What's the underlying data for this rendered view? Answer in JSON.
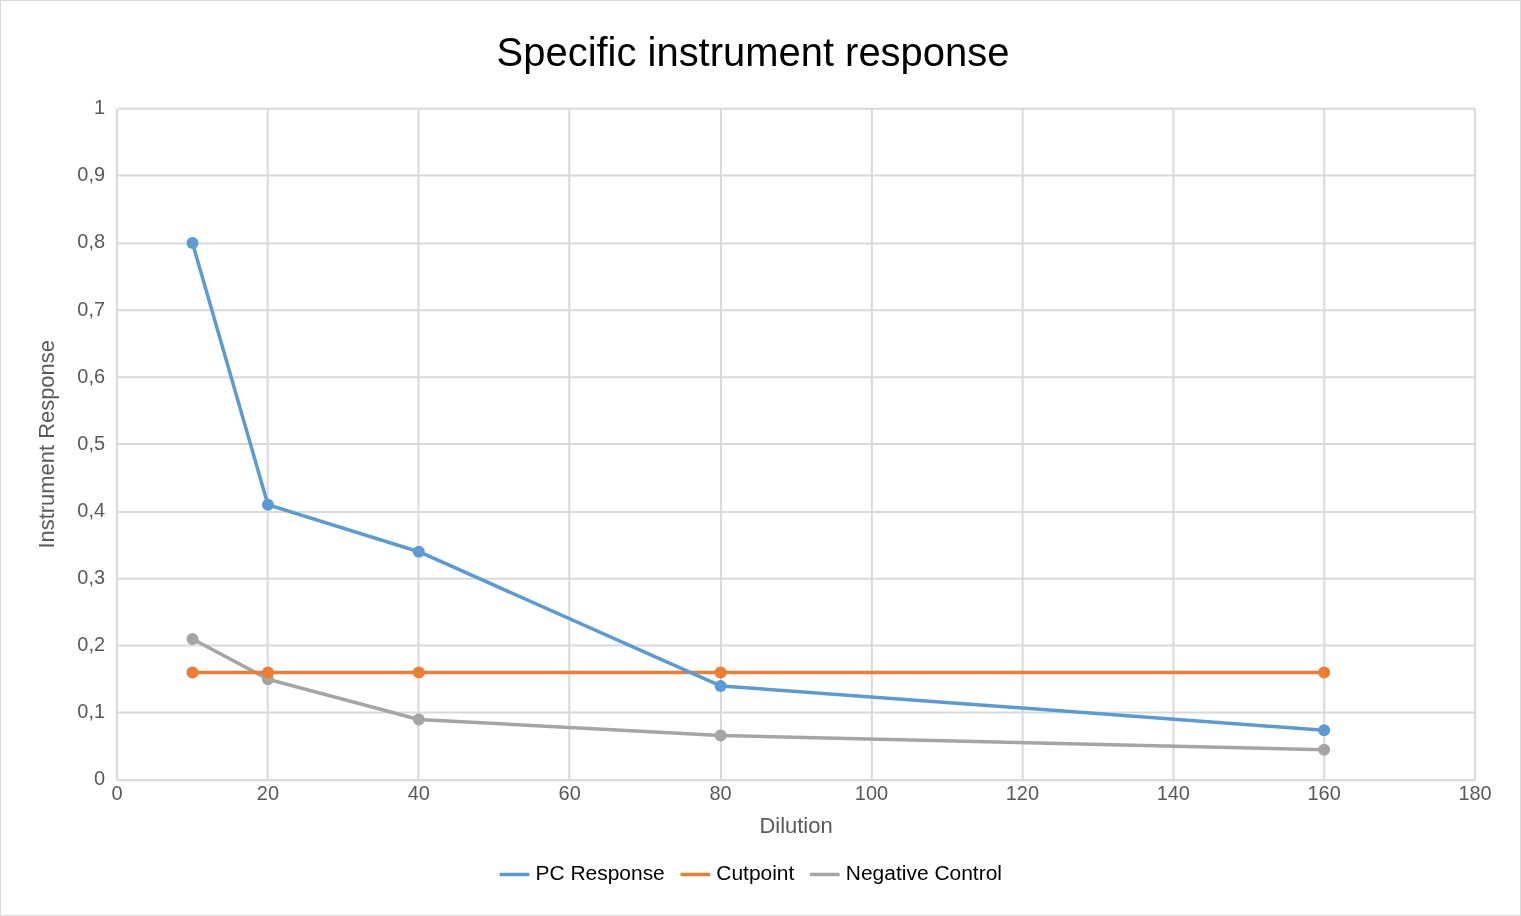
{
  "chart_data": {
    "type": "line",
    "title": "Specific instrument response",
    "xlabel": "Dilution",
    "ylabel": "Instrument Response",
    "x": [
      10,
      20,
      40,
      80,
      160
    ],
    "series": [
      {
        "name": "PC Response",
        "color": "#5b9bd5",
        "values": [
          0.8,
          0.41,
          0.34,
          0.14,
          0.074
        ]
      },
      {
        "name": "Cutpoint",
        "color": "#ed7d31",
        "values": [
          0.16,
          0.16,
          0.16,
          0.16,
          0.16
        ]
      },
      {
        "name": "Negative Control",
        "color": "#a5a5a5",
        "values": [
          0.21,
          0.15,
          0.09,
          0.066,
          0.045
        ]
      }
    ],
    "xlim": [
      0,
      180
    ],
    "xticks": [
      0,
      20,
      40,
      60,
      80,
      100,
      120,
      140,
      160,
      180
    ],
    "ylim": [
      0,
      1
    ],
    "yticks": [
      0,
      {
        "value": 0.1,
        "label": "0,1"
      },
      {
        "value": 0.2,
        "label": "0,2"
      },
      {
        "value": 0.3,
        "label": "0,3"
      },
      {
        "value": 0.4,
        "label": "0,4"
      },
      {
        "value": 0.5,
        "label": "0,5"
      },
      {
        "value": 0.6,
        "label": "0,6"
      },
      {
        "value": 0.7,
        "label": "0,7"
      },
      {
        "value": 0.8,
        "label": "0,8"
      },
      {
        "value": 0.9,
        "label": "0,9"
      },
      1
    ],
    "grid": true,
    "legend": "bottom",
    "marker": "circle",
    "line_style": "solid"
  }
}
